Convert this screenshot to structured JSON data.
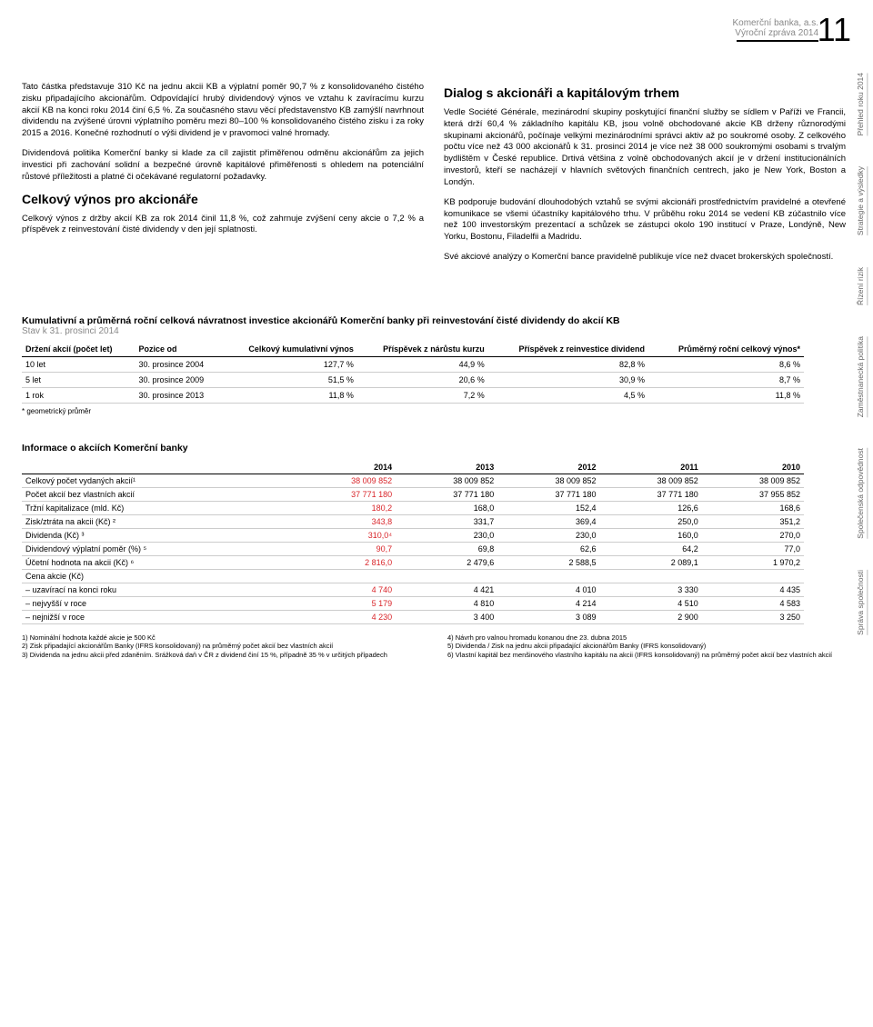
{
  "header": {
    "company": "Komerční banka, a.s.",
    "report": "Výroční zpráva 2014",
    "page_number": "11"
  },
  "side_tabs": [
    "Přehled roku 2014",
    "Strategie a výsledky",
    "Řízení rizik",
    "Zaměstnanecká politika",
    "Společenská odpovědnost",
    "Správa společnosti"
  ],
  "left_col": {
    "p1": "Tato částka představuje 310 Kč na jednu akcii KB a výplatní poměr 90,7 % z konsolidovaného čistého zisku připadajícího akcionářům. Odpovídající hrubý dividendový výnos ve vztahu k zavíracímu kurzu akcií KB na konci roku 2014 činí 6,5 %. Za současného stavu věcí představenstvo KB zamýšlí navrhnout dividendu na zvýšené úrovni výplatního poměru mezi 80–100 % konsolidovaného čistého zisku i za roky 2015 a 2016. Konečné rozhodnutí o výši dividend je v pravomoci valné hromady.",
    "p2": "Dividendová politika Komerční banky si klade za cíl zajistit přiměřenou odměnu akcionářům za jejich investici při zachování solidní a bezpečné úrovně kapitálové přiměřenosti s ohledem na potenciální růstové příležitosti a platné či očekávané regulatorní požadavky.",
    "h1": "Celkový výnos pro akcionáře",
    "p3": "Celkový výnos z držby akcií KB za rok 2014 činil 11,8 %, což zahrnuje zvýšení ceny akcie o 7,2 % a příspěvek z reinvestování čisté dividendy v den její splatnosti."
  },
  "right_col": {
    "h1": "Dialog s akcionáři a kapitálovým trhem",
    "p1": "Vedle Société Générale, mezinárodní skupiny poskytující finanční služby se sídlem v Paříži ve Francii, která drží 60,4 % základního kapitálu KB, jsou volně obchodované akcie KB drženy různorodými skupinami akcionářů, počínaje velkými mezinárodními správci aktiv až po soukromé osoby. Z celkového počtu více než 43 000 akcionářů k 31. prosinci 2014 je více než 38 000 soukromými osobami s trvalým bydlištěm v České republice. Drtivá většina z volně obchodovaných akcií je v držení institucionálních investorů, kteří se nacházejí v hlavních světových finančních centrech, jako je New York, Boston a Londýn.",
    "p2": "KB podporuje budování dlouhodobých vztahů se svými akcionáři prostřednictvím pravidelné a otevřené komunikace se všemi účastníky kapitálového trhu. V průběhu roku 2014 se vedení KB zúčastnilo více než 100 investorským prezentací a schůzek se zástupci okolo 190 institucí v Praze, Londýně, New Yorku, Bostonu, Filadelfii a Madridu.",
    "p3": "Své akciové analýzy o Komerční bance pravidelně publikuje více než dvacet brokerských společností."
  },
  "table1": {
    "title": "Kumulativní a průměrná roční celková návratnost investice akcionářů Komerční banky při reinvestování čisté dividendy do akcií KB",
    "subtitle": "Stav k 31. prosinci 2014",
    "columns": [
      "Držení akcií (počet let)",
      "Pozice od",
      "Celkový kumulativní výnos",
      "Příspěvek z nárůstu kurzu",
      "Příspěvek z reinvestice dividend",
      "Průměrný roční celkový výnos*"
    ],
    "rows": [
      [
        "10 let",
        "30. prosince 2004",
        "127,7 %",
        "44,9 %",
        "82,8 %",
        "8,6 %"
      ],
      [
        "5 let",
        "30. prosince 2009",
        "51,5 %",
        "20,6 %",
        "30,9 %",
        "8,7 %"
      ],
      [
        "1 rok",
        "30. prosince 2013",
        "11,8 %",
        "7,2 %",
        "4,5 %",
        "11,8 %"
      ]
    ],
    "footnote": "* geometrický průměr"
  },
  "table2": {
    "title": "Informace o akciích Komerční banky",
    "columns": [
      "",
      "2014",
      "2013",
      "2012",
      "2011",
      "2010"
    ],
    "rows": [
      {
        "label": "Celkový počet vydaných akcií¹",
        "values": [
          "38 009 852",
          "38 009 852",
          "38 009 852",
          "38 009 852",
          "38 009 852"
        ],
        "red_first": true
      },
      {
        "label": "Počet akcií bez vlastních akcií",
        "values": [
          "37 771 180",
          "37 771 180",
          "37 771 180",
          "37 771 180",
          "37 955 852"
        ],
        "red_first": true
      },
      {
        "label": "Tržní kapitalizace (mld. Kč)",
        "values": [
          "180,2",
          "168,0",
          "152,4",
          "126,6",
          "168,6"
        ],
        "red_first": true
      },
      {
        "label": "Zisk/ztráta na akcii (Kč) ²",
        "values": [
          "343,8",
          "331,7",
          "369,4",
          "250,0",
          "351,2"
        ],
        "red_first": true
      },
      {
        "label": "Dividenda (Kč) ³",
        "values": [
          "310,0⁴",
          "230,0",
          "230,0",
          "160,0",
          "270,0"
        ],
        "red_first": true
      },
      {
        "label": "Dividendový výplatní poměr (%) ⁵",
        "values": [
          "90,7",
          "69,8",
          "62,6",
          "64,2",
          "77,0"
        ],
        "red_first": true
      },
      {
        "label": "Účetní hodnota na akcii (Kč) ⁶",
        "values": [
          "2 816,0",
          "2 479,6",
          "2 588,5",
          "2 089,1",
          "1 970,2"
        ],
        "red_first": true
      },
      {
        "label": "Cena akcie (Kč)",
        "values": [
          "",
          "",
          "",
          "",
          ""
        ],
        "red_first": false
      },
      {
        "label": "– uzavírací na konci roku",
        "values": [
          "4 740",
          "4 421",
          "4 010",
          "3 330",
          "4 435"
        ],
        "red_first": true
      },
      {
        "label": "– nejvyšší v roce",
        "values": [
          "5 179",
          "4 810",
          "4 214",
          "4 510",
          "4 583"
        ],
        "red_first": true
      },
      {
        "label": "– nejnižší v roce",
        "values": [
          "4 230",
          "3 400",
          "3 089",
          "2 900",
          "3 250"
        ],
        "red_first": true
      }
    ]
  },
  "notes": {
    "left": [
      "1) Nominální hodnota každé akcie je 500 Kč",
      "2) Zisk připadající akcionářům Banky (IFRS konsolidovaný) na průměrný počet akcií bez vlastních akcií",
      "3) Dividenda na jednu akcii před zdaněním. Srážková daň v ČR z dividend činí 15 %, případně 35 % v určitých případech"
    ],
    "right": [
      "4) Návrh pro valnou hromadu konanou dne 23. dubna 2015",
      "5) Dividenda / Zisk na jednu akcii připadající akcionářům Banky (IFRS konsolidovaný)",
      "6) Vlastní kapitál bez menšinového vlastního kapitálu na akcii (IFRS konsolidovaný) na průměrný počet akcií bez vlastních akcií"
    ]
  }
}
